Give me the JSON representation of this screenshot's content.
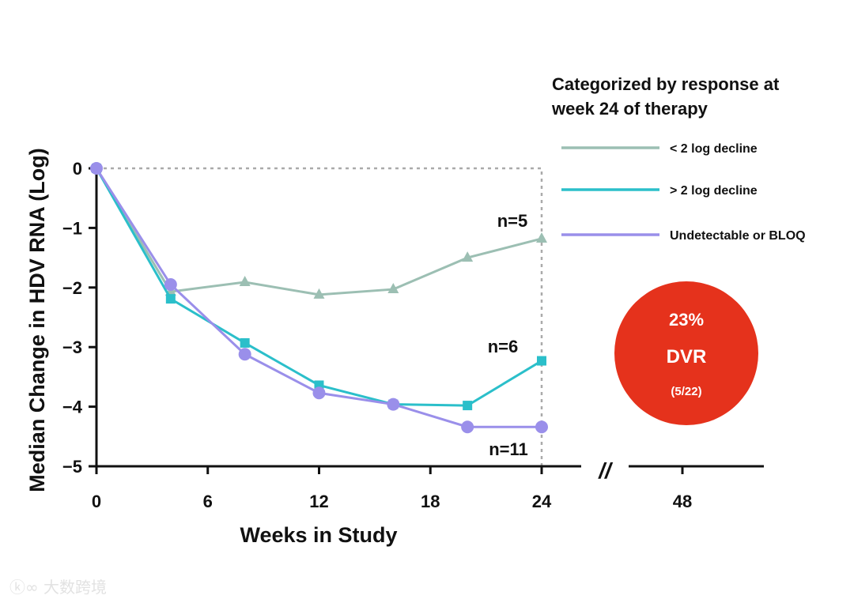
{
  "chart_data": {
    "type": "line",
    "xlabel": "Weeks in Study",
    "ylabel": "Median Change in HDV RNA (Log)",
    "x_ticks": [
      "0",
      "6",
      "12",
      "18",
      "24",
      "48"
    ],
    "y_ticks": [
      "0",
      "−1",
      "−2",
      "−3",
      "−4",
      "−5"
    ],
    "y_tick_values": [
      0,
      -1,
      -2,
      -3,
      -4,
      -5
    ],
    "x_tick_values": [
      0,
      6,
      12,
      18,
      24
    ],
    "ylim": [
      -5,
      0
    ],
    "xlim": [
      0,
      24
    ],
    "axis_break": "//",
    "x": [
      0,
      4,
      8,
      12,
      16,
      20,
      24
    ],
    "legend_title": "Categorized by response at week 24 of therapy",
    "legend_position": "top-right",
    "series": [
      {
        "name": "< 2 log decline",
        "color": "#9cbfb3",
        "marker": "triangle",
        "values": [
          0,
          -2.07,
          -1.91,
          -2.12,
          -2.03,
          -1.5,
          -1.18
        ],
        "annotation": "n=5"
      },
      {
        "name": "> 2 log decline",
        "color": "#2bbfca",
        "marker": "square",
        "values": [
          0,
          -2.19,
          -2.93,
          -3.64,
          -3.96,
          -3.98,
          -3.23
        ],
        "annotation": "n=6"
      },
      {
        "name": "Undetectable or BLOQ",
        "color": "#9a8fea",
        "marker": "circle",
        "values": [
          0,
          -1.95,
          -3.12,
          -3.77,
          -3.96,
          -4.34,
          -4.34
        ],
        "annotation": "n=11"
      }
    ],
    "badge": {
      "value": "23%",
      "label": "DVR",
      "detail": "(5/22)",
      "color": "#e5321c"
    }
  },
  "watermark": "大数跨境"
}
